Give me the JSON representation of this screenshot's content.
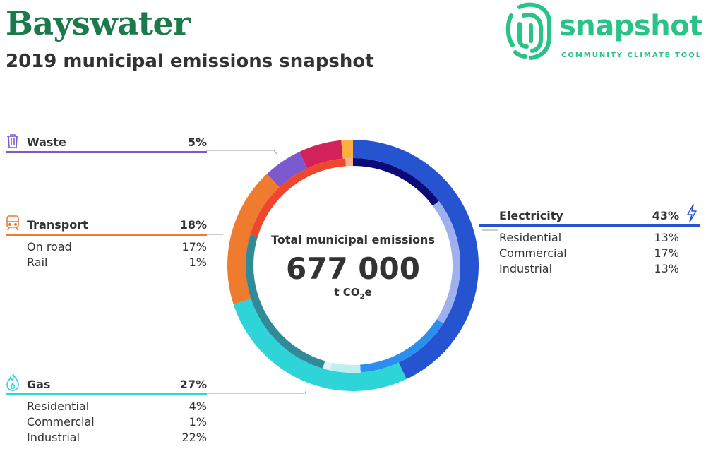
{
  "header": {
    "title": "Bayswater",
    "subtitle": "2019 municipal emissions snapshot"
  },
  "logo": {
    "word": "snapshot",
    "tagline": "COMMUNITY CLIMATE TOOL",
    "icon": "fingerprint-swirl-icon"
  },
  "center": {
    "label": "Total municipal emissions",
    "total": "677 000",
    "unit_prefix": "t CO",
    "unit_sub": "2",
    "unit_suffix": "e"
  },
  "sectors": {
    "waste": {
      "name": "Waste",
      "pct": "5%",
      "color": "#7b5ad0",
      "icon": "trash-bin-icon",
      "rows": []
    },
    "transport": {
      "name": "Transport",
      "pct": "18%",
      "color": "#ef7b2f",
      "icon": "train-icon",
      "rows": [
        {
          "label": "On road",
          "pct": "17%"
        },
        {
          "label": "Rail",
          "pct": "1%"
        }
      ]
    },
    "gas": {
      "name": "Gas",
      "pct": "27%",
      "color": "#2dd5d9",
      "icon": "flame-icon",
      "rows": [
        {
          "label": "Residential",
          "pct": "4%"
        },
        {
          "label": "Commercial",
          "pct": "1%"
        },
        {
          "label": "Industrial",
          "pct": "22%"
        }
      ]
    },
    "electricity": {
      "name": "Electricity",
      "pct": "43%",
      "color": "#2654d0",
      "icon": "lightning-bolt-icon",
      "rows": [
        {
          "label": "Residential",
          "pct": "13%"
        },
        {
          "label": "Commercial",
          "pct": "17%"
        },
        {
          "label": "Industrial",
          "pct": "13%"
        }
      ]
    }
  },
  "chart_data": {
    "type": "pie",
    "title": "Total municipal emissions",
    "total": 677000,
    "unit": "t CO2e",
    "outer_ring": [
      {
        "name": "Electricity",
        "value": 43,
        "color": "#2654d0"
      },
      {
        "name": "Gas",
        "value": 27,
        "color": "#2dd5d9"
      },
      {
        "name": "Transport",
        "value": 18,
        "color": "#ef7b2f"
      },
      {
        "name": "Waste",
        "value": 5,
        "color": "#7b5ad0"
      },
      {
        "name": "",
        "value": 5.5,
        "color": "#d3215a"
      },
      {
        "name": "",
        "value": 1.5,
        "color": "#fbb040"
      }
    ],
    "inner_ring": [
      {
        "name": "Electricity Residential",
        "value": 13,
        "color": "#0b0a78"
      },
      {
        "name": "Electricity Commercial",
        "value": 17,
        "color": "#9fb0ee"
      },
      {
        "name": "Electricity Industrial",
        "value": 13,
        "color": "#2b8ff0"
      },
      {
        "name": "Gas Residential",
        "value": 4,
        "color": "#bfeef0"
      },
      {
        "name": "Gas Commercial",
        "value": 1,
        "color": "#e2f6f7"
      },
      {
        "name": "Gas Industrial",
        "value": 22,
        "color": "#318a97"
      },
      {
        "name": "Transport On road",
        "value": 17,
        "color": "#f0452f"
      },
      {
        "name": "Transport Rail",
        "value": 1,
        "color": "#f6b08a"
      }
    ]
  }
}
